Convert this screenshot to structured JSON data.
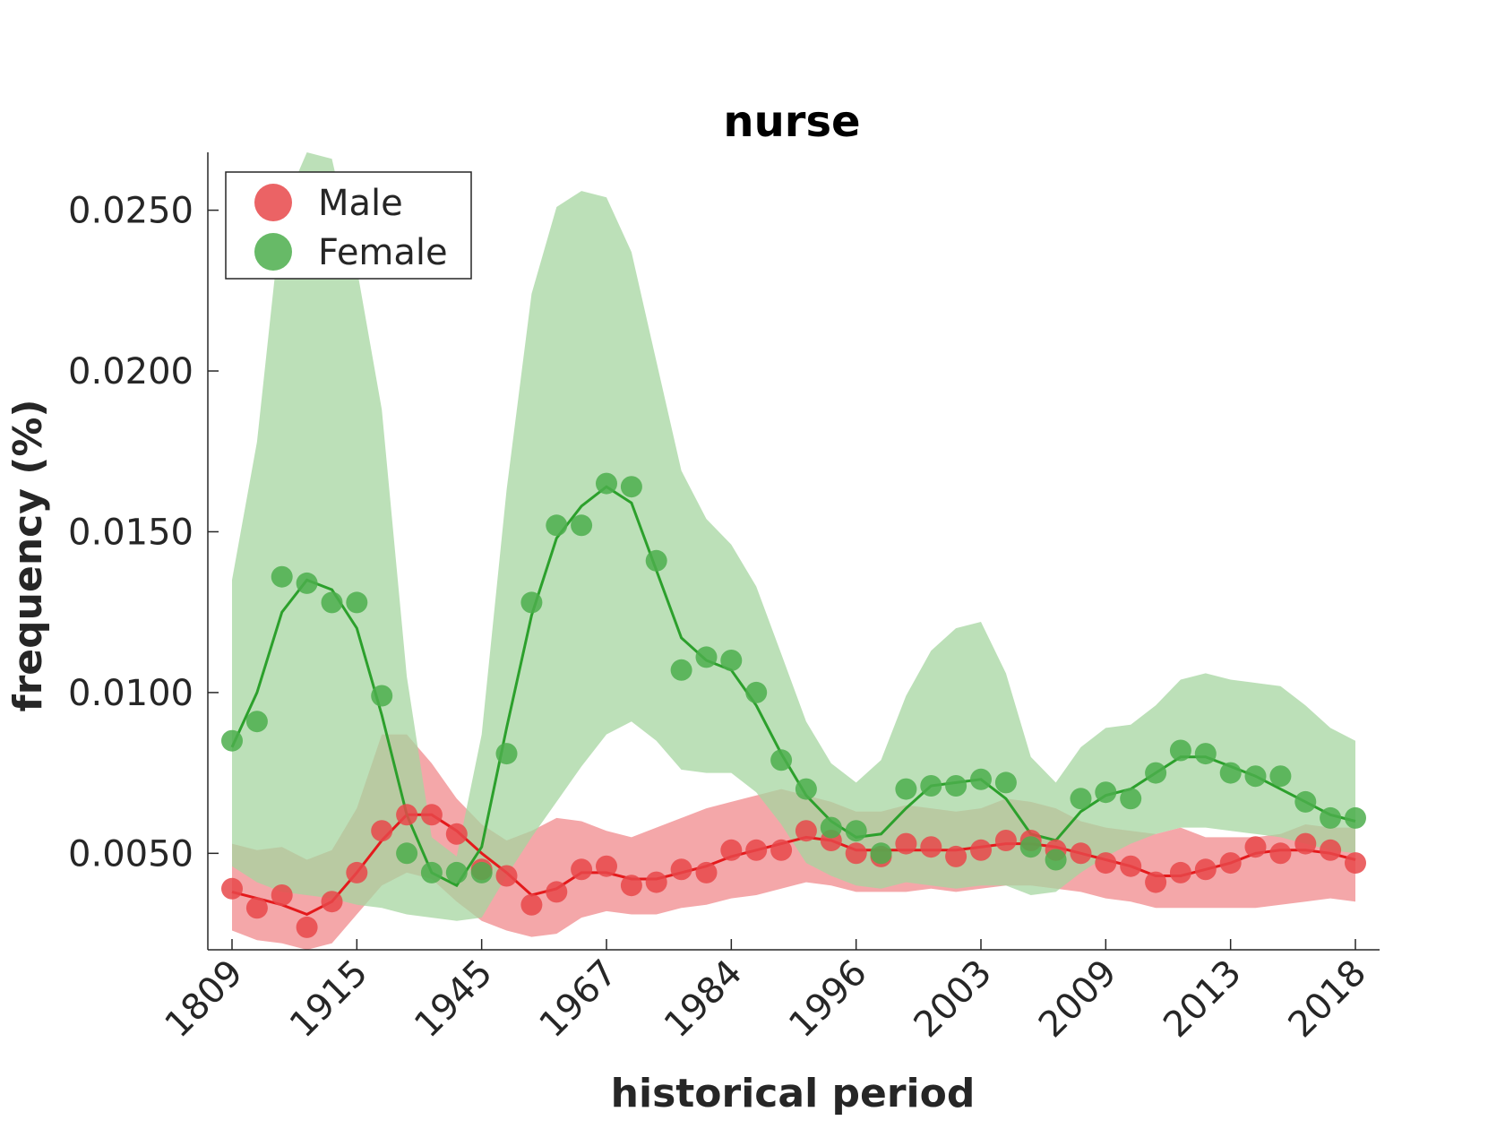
{
  "chart_data": {
    "type": "line",
    "title": "nurse",
    "xlabel": "historical period",
    "ylabel": "frequency (%)",
    "x_tick_labels": [
      "1809",
      "1915",
      "1945",
      "1967",
      "1984",
      "1996",
      "2003",
      "2009",
      "2013",
      "2018"
    ],
    "y_ticks": [
      0.005,
      0.01,
      0.015,
      0.02,
      0.025
    ],
    "y_tick_labels": [
      "0.0050",
      "0.0100",
      "0.0150",
      "0.0200",
      "0.0250"
    ],
    "ylim": [
      0.002,
      0.0268
    ],
    "grid": false,
    "legend_position": "top-left",
    "series": [
      {
        "name": "Male",
        "color": "#e41a1c",
        "dot_color": "#e8484a",
        "band_color": "#f08a8c",
        "points": [
          0.0039,
          0.0033,
          0.0037,
          0.0027,
          0.0035,
          0.0044,
          0.0057,
          0.0062,
          0.0062,
          0.0056,
          0.0045,
          0.0043,
          0.0034,
          0.0038,
          0.0045,
          0.0046,
          0.004,
          0.0041,
          0.0045,
          0.0044,
          0.0051,
          0.0051,
          0.0051,
          0.0057,
          0.0054,
          0.005,
          0.0049,
          0.0053,
          0.0052,
          0.0049,
          0.0051,
          0.0054,
          0.0054,
          0.0051,
          0.005,
          0.0047,
          0.0046,
          0.0041,
          0.0044,
          0.0045,
          0.0047,
          0.0052,
          0.005,
          0.0053,
          0.0051,
          0.0047
        ],
        "smooth": [
          0.0038,
          0.0036,
          0.0034,
          0.0031,
          0.0035,
          0.0044,
          0.0054,
          0.0062,
          0.0062,
          0.0057,
          0.005,
          0.0044,
          0.0037,
          0.0039,
          0.0044,
          0.0044,
          0.0042,
          0.0042,
          0.0044,
          0.0046,
          0.0049,
          0.0051,
          0.0053,
          0.0055,
          0.0054,
          0.0051,
          0.0051,
          0.0051,
          0.0051,
          0.0051,
          0.0052,
          0.0053,
          0.0053,
          0.0052,
          0.005,
          0.0048,
          0.0046,
          0.0043,
          0.0043,
          0.0045,
          0.0047,
          0.005,
          0.0051,
          0.0051,
          0.005,
          0.0048
        ],
        "upper": [
          0.0053,
          0.0051,
          0.0052,
          0.0048,
          0.0051,
          0.0064,
          0.0087,
          0.0087,
          0.0078,
          0.0067,
          0.0059,
          0.0054,
          0.0057,
          0.0061,
          0.006,
          0.0057,
          0.0055,
          0.0058,
          0.0061,
          0.0064,
          0.0066,
          0.0068,
          0.007,
          0.0068,
          0.0066,
          0.0063,
          0.0063,
          0.0065,
          0.0064,
          0.0063,
          0.0064,
          0.0067,
          0.0066,
          0.0064,
          0.006,
          0.0058,
          0.0057,
          0.0056,
          0.0058,
          0.0055,
          0.0055,
          0.0055,
          0.0056,
          0.0059,
          0.0058,
          0.0058
        ],
        "lower": [
          0.0026,
          0.0023,
          0.0022,
          0.002,
          0.0022,
          0.0031,
          0.004,
          0.0044,
          0.0042,
          0.0035,
          0.0029,
          0.0026,
          0.0024,
          0.0025,
          0.003,
          0.0032,
          0.0031,
          0.0031,
          0.0033,
          0.0034,
          0.0036,
          0.0037,
          0.0039,
          0.0041,
          0.004,
          0.0038,
          0.0038,
          0.0038,
          0.0039,
          0.0038,
          0.0039,
          0.004,
          0.004,
          0.0039,
          0.0038,
          0.0036,
          0.0035,
          0.0033,
          0.0033,
          0.0033,
          0.0033,
          0.0033,
          0.0034,
          0.0035,
          0.0036,
          0.0035
        ]
      },
      {
        "name": "Female",
        "color": "#2ca02c",
        "dot_color": "#4cae4c",
        "band_color": "#a6d6a0",
        "points": [
          0.0085,
          0.0091,
          0.0136,
          0.0134,
          0.0128,
          0.0128,
          0.0099,
          0.005,
          0.0044,
          0.0044,
          0.0044,
          0.0081,
          0.0128,
          0.0152,
          0.0152,
          0.0165,
          0.0164,
          0.0141,
          0.0107,
          0.0111,
          0.011,
          0.01,
          0.0079,
          0.007,
          0.0058,
          0.0057,
          0.005,
          0.007,
          0.0071,
          0.0071,
          0.0073,
          0.0072,
          0.0052,
          0.0048,
          0.0067,
          0.0069,
          0.0067,
          0.0075,
          0.0082,
          0.0081,
          0.0075,
          0.0074,
          0.0074,
          0.0066,
          0.0061,
          0.0061
        ],
        "smooth": [
          0.0083,
          0.01,
          0.0125,
          0.0135,
          0.0132,
          0.012,
          0.0093,
          0.0062,
          0.0044,
          0.004,
          0.0052,
          0.0089,
          0.0124,
          0.0148,
          0.0158,
          0.0164,
          0.0159,
          0.0138,
          0.0117,
          0.011,
          0.0107,
          0.0096,
          0.0081,
          0.0068,
          0.006,
          0.0055,
          0.0056,
          0.0064,
          0.0071,
          0.0072,
          0.0073,
          0.0067,
          0.0056,
          0.0054,
          0.0063,
          0.0068,
          0.007,
          0.0075,
          0.008,
          0.008,
          0.0077,
          0.0074,
          0.007,
          0.0066,
          0.0062,
          0.006
        ],
        "upper": [
          0.0135,
          0.0178,
          0.025,
          0.0268,
          0.0266,
          0.0232,
          0.0188,
          0.0105,
          0.0055,
          0.0049,
          0.0087,
          0.0163,
          0.0224,
          0.0251,
          0.0256,
          0.0254,
          0.0237,
          0.0203,
          0.0169,
          0.0154,
          0.0146,
          0.0133,
          0.0112,
          0.0091,
          0.0078,
          0.0072,
          0.0079,
          0.0099,
          0.0113,
          0.012,
          0.0122,
          0.0106,
          0.008,
          0.0072,
          0.0083,
          0.0089,
          0.009,
          0.0096,
          0.0104,
          0.0106,
          0.0104,
          0.0103,
          0.0102,
          0.0096,
          0.0089,
          0.0085
        ],
        "lower": [
          0.0046,
          0.0041,
          0.0038,
          0.0037,
          0.0036,
          0.0034,
          0.0033,
          0.0031,
          0.003,
          0.0029,
          0.003,
          0.0043,
          0.0055,
          0.0066,
          0.0077,
          0.0087,
          0.0091,
          0.0085,
          0.0076,
          0.0075,
          0.0075,
          0.0069,
          0.0059,
          0.0047,
          0.0043,
          0.004,
          0.0039,
          0.0041,
          0.004,
          0.0039,
          0.004,
          0.004,
          0.0037,
          0.0038,
          0.0044,
          0.0049,
          0.0053,
          0.0056,
          0.0058,
          0.0058,
          0.0057,
          0.0056,
          0.0055,
          0.0053,
          0.0051,
          0.005
        ]
      }
    ]
  }
}
